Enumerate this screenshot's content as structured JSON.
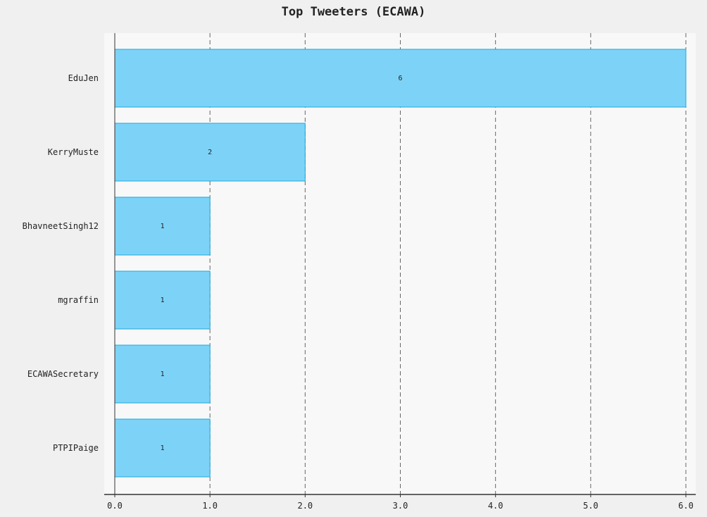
{
  "chart_data": {
    "type": "bar",
    "orientation": "horizontal",
    "title": "Top Tweeters (ECAWA)",
    "categories": [
      "EduJen",
      "KerryMuste",
      "BhavneetSingh12",
      "mgraffin",
      "ECAWASecretary",
      "PTPIPaige"
    ],
    "values": [
      6,
      2,
      1,
      1,
      1,
      1
    ],
    "value_labels": [
      "6",
      "2",
      "1",
      "1",
      "1",
      "1"
    ],
    "xlim": [
      0,
      6
    ],
    "xticks": [
      0,
      1,
      2,
      3,
      4,
      5,
      6
    ],
    "xtick_labels": [
      "0.0",
      "1.0",
      "2.0",
      "3.0",
      "4.0",
      "5.0",
      "6.0"
    ],
    "xlabel": "",
    "ylabel": "",
    "grid": "vertical-dashed",
    "legend": "none",
    "colors": {
      "bar_fill": "#7dd3f7",
      "bar_stroke": "#1ba8dc",
      "plot_background": "#f8f8f8",
      "page_background": "#f0f0f0",
      "grid": "#666666",
      "axis": "#333333",
      "text": "#222222"
    }
  }
}
